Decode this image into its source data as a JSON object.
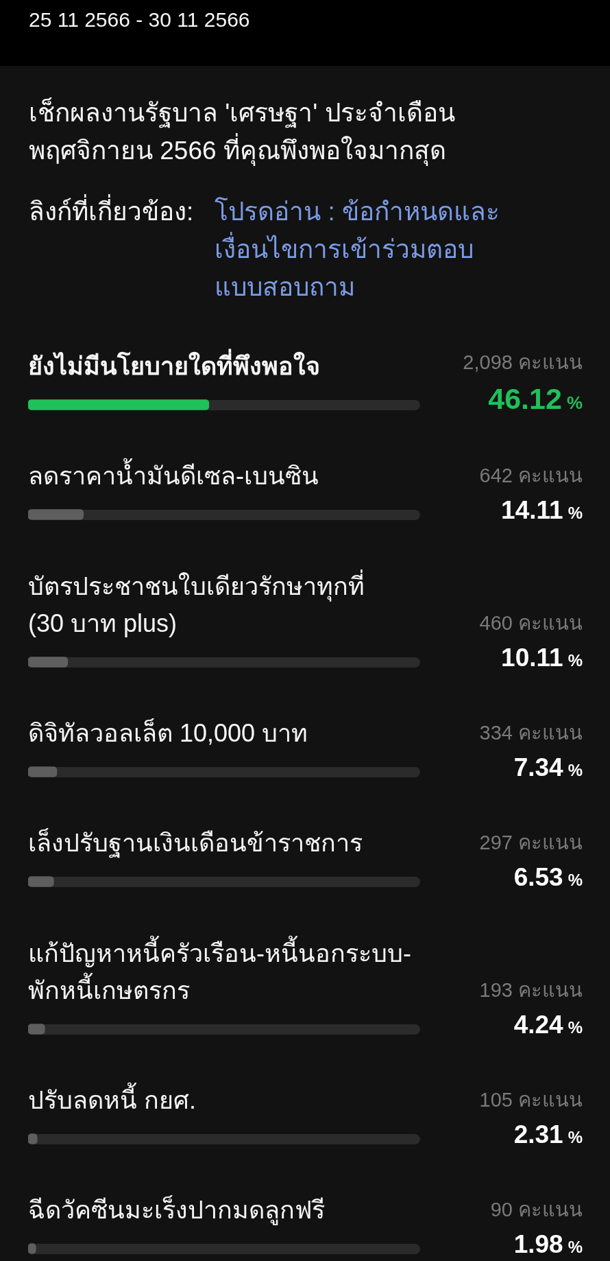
{
  "chart_data": {
    "type": "bar",
    "orientation": "horizontal",
    "title": "เช็กผลงานรัฐบาล 'เศรษฐา' ประจำเดือน พฤศจิกายน 2566 ที่คุณพึงพอใจมากสุด",
    "subtitle": "25 11 2566 - 30 11 2566",
    "categories": [
      "ยังไม่มีนโยบายใดที่พึงพอใจ",
      "ลดราคาน้ำมันดีเซล-เบนซิน",
      "บัตรประชาชนใบเดียวรักษาทุกที่ (30 บาท plus)",
      "ดิจิทัลวอลเล็ต 10,000 บาท",
      "เล็งปรับฐานเงินเดือนข้าราชการ",
      "แก้ปัญหาหนี้ครัวเรือน-หนี้นอกระบบ-พักหนี้เกษตรกร",
      "ปรับลดหนี้ กยศ.",
      "ฉีดวัคซีนมะเร็งปากมดลูกฟรี"
    ],
    "values": [
      46.12,
      14.11,
      10.11,
      7.34,
      6.53,
      4.24,
      2.31,
      1.98
    ],
    "colors": [
      "#20c05a",
      "#5e5e5e",
      "#5e5e5e",
      "#5e5e5e",
      "#5e5e5e",
      "#5e5e5e",
      "#5e5e5e",
      "#5e5e5e"
    ],
    "value_labels": [
      "46.12 %",
      "14.11 %",
      "10.11 %",
      "7.34 %",
      "6.53 %",
      "4.24 %",
      "2.31 %",
      "1.98 %"
    ],
    "xlim": [
      0,
      100
    ],
    "grid": false,
    "legend": false,
    "tick_labels": "y",
    "annotations": [
      "ลิงก์ที่เกี่ยวข้อง:",
      "โปรดอ่าน : ข้อกำหนดและเงื่อนไขการเข้าร่วมตอบแบบสอบถาม",
      "2,098 คะแนน",
      "642 คะแนน",
      "460 คะแนน",
      "334 คะแนน",
      "297 คะแนน",
      "193 คะแนน",
      "105 คะแนน",
      "90 คะแนน"
    ]
  }
}
